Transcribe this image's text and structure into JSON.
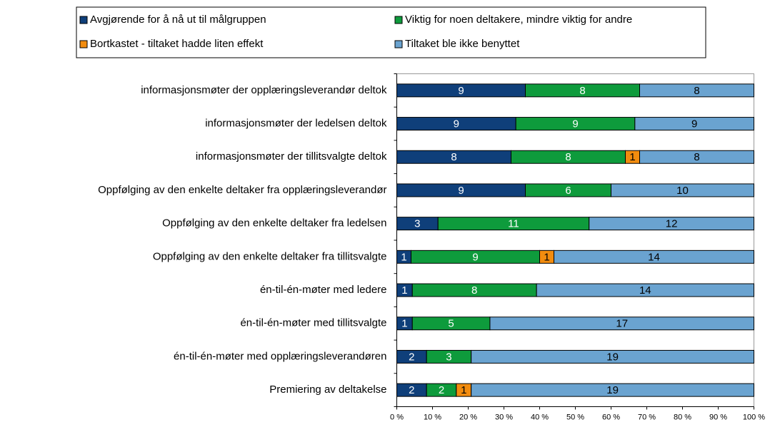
{
  "chart_data": {
    "type": "bar",
    "orientation": "horizontal",
    "stack": "percent",
    "categories": [
      "informasjonsmøter der opplæringsleverandør deltok",
      "informasjonsmøter der ledelsen deltok",
      "informasjonsmøter der tillitsvalgte deltok",
      "Oppfølging av den enkelte deltaker fra opplæringsleverandør",
      "Oppfølging av den enkelte deltaker fra ledelsen",
      "Oppfølging av den enkelte deltaker fra tillitsvalgte",
      "én-til-én-møter med ledere",
      "én-til-én-møter med tillitsvalgte",
      "én-til-én-møter med opplæringsleverandøren",
      "Premiering av deltakelse"
    ],
    "series": [
      {
        "name": "Avgjørende for å nå ut til målgruppen",
        "color": "#0f3f7a",
        "label_color": "#ffffff",
        "values": [
          9,
          9,
          8,
          9,
          3,
          1,
          1,
          1,
          2,
          2
        ]
      },
      {
        "name": "Viktig for noen deltakere, mindre viktig for andre",
        "color": "#0e9b3c",
        "label_color": "#ffffff",
        "values": [
          8,
          9,
          8,
          6,
          11,
          9,
          8,
          5,
          3,
          2
        ]
      },
      {
        "name": "Bortkastet - tiltaket hadde liten effekt",
        "color": "#f28c0f",
        "label_color": "#000000",
        "values": [
          0,
          0,
          1,
          0,
          0,
          1,
          0,
          0,
          0,
          1
        ]
      },
      {
        "name": "Tiltaket ble ikke benyttet",
        "color": "#6aa3d0",
        "label_color": "#000000",
        "values": [
          8,
          9,
          8,
          10,
          12,
          14,
          14,
          17,
          19,
          19
        ]
      }
    ],
    "xlim": [
      0,
      100
    ],
    "xticks": [
      {
        "value": 0,
        "label": "0 %"
      },
      {
        "value": 10,
        "label": "10 %"
      },
      {
        "value": 20,
        "label": "20 %"
      },
      {
        "value": 30,
        "label": "30 %"
      },
      {
        "value": 40,
        "label": "40 %"
      },
      {
        "value": 50,
        "label": "50 %"
      },
      {
        "value": 60,
        "label": "60 %"
      },
      {
        "value": 70,
        "label": "70 %"
      },
      {
        "value": 80,
        "label": "80 %"
      },
      {
        "value": 90,
        "label": "90 %"
      },
      {
        "value": 100,
        "label": "100 %"
      }
    ],
    "legend": "top"
  }
}
